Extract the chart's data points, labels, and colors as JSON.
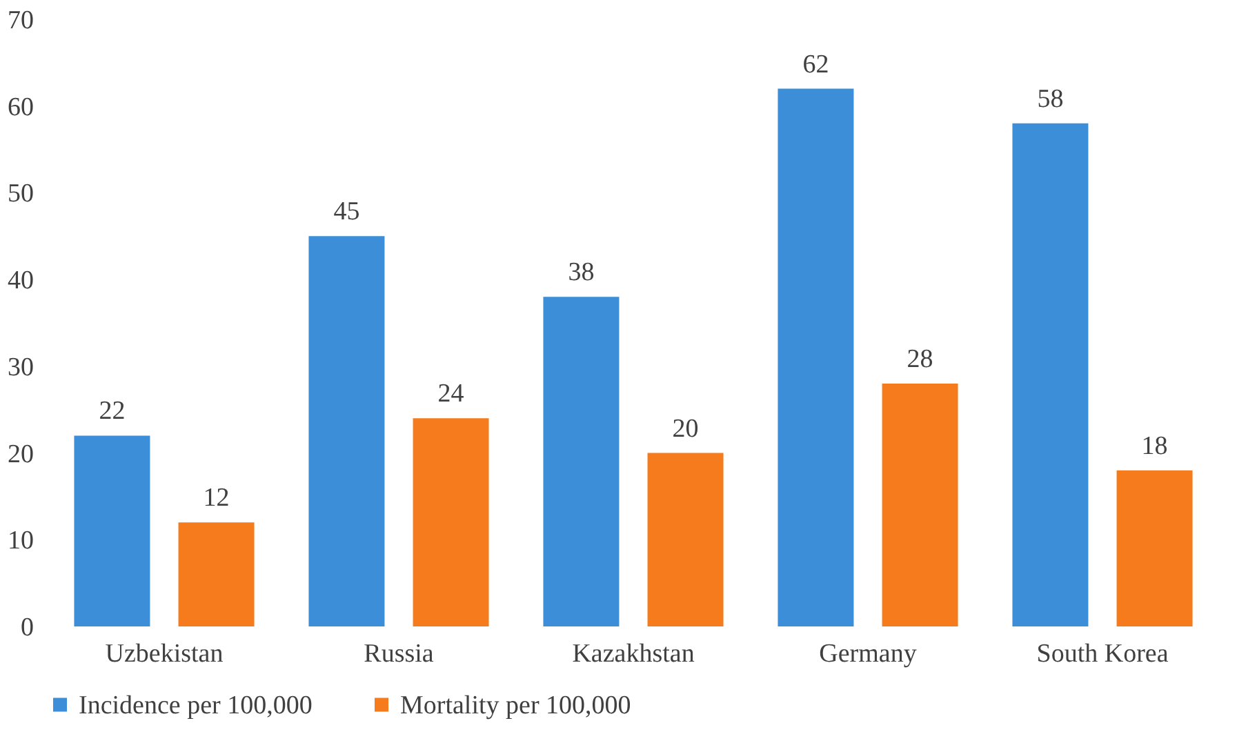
{
  "chart_data": {
    "type": "bar",
    "categories": [
      "Uzbekistan",
      "Russia",
      "Kazakhstan",
      "Germany",
      "South Korea"
    ],
    "series": [
      {
        "name": "Incidence per 100,000",
        "color": "#3d8ed8",
        "values": [
          22,
          45,
          38,
          62,
          58
        ]
      },
      {
        "name": "Mortality per 100,000",
        "color": "#f57b1c",
        "values": [
          12,
          24,
          20,
          28,
          18
        ]
      }
    ],
    "ylim": [
      0,
      70
    ],
    "yticks": [
      0,
      10,
      20,
      30,
      40,
      50,
      60,
      70
    ],
    "grid": false,
    "legend": "bottom",
    "data_labels": true
  }
}
